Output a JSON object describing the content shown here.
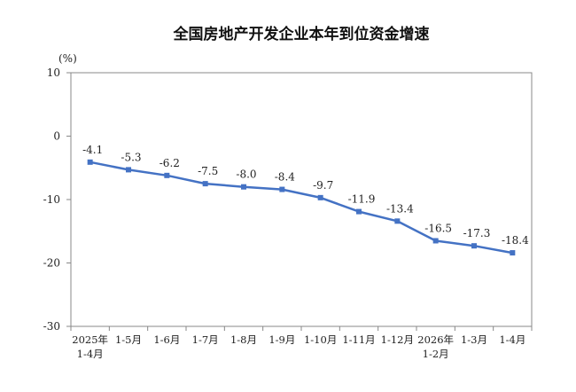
{
  "chart_data": {
    "type": "line",
    "title": "全国房地产开发企业本年到位资金增速",
    "unit": "(%)",
    "categories": [
      [
        "2025年",
        "1-4月"
      ],
      [
        "1-5月"
      ],
      [
        "1-6月"
      ],
      [
        "1-7月"
      ],
      [
        "1-8月"
      ],
      [
        "1-9月"
      ],
      [
        "1-10月"
      ],
      [
        "1-11月"
      ],
      [
        "1-12月"
      ],
      [
        "2026年",
        "1-2月"
      ],
      [
        "1-3月"
      ],
      [
        "1-4月"
      ]
    ],
    "values": [
      -4.1,
      -5.3,
      -6.2,
      -7.5,
      -8.0,
      -8.4,
      -9.7,
      -11.9,
      -13.4,
      -16.5,
      -17.3,
      -18.4
    ],
    "value_labels": [
      "-4.1",
      "-5.3",
      "-6.2",
      "-7.5",
      "-8.0",
      "-8.4",
      "-9.7",
      "-11.9",
      "-13.4",
      "-16.5",
      "-17.3",
      "-18.4"
    ],
    "yticks": [
      "10",
      "0",
      "-10",
      "-20",
      "-30"
    ],
    "ylim": [
      -30,
      10
    ],
    "grid": false,
    "colors": {
      "line": "#4472C4",
      "axis": "#888888"
    }
  }
}
